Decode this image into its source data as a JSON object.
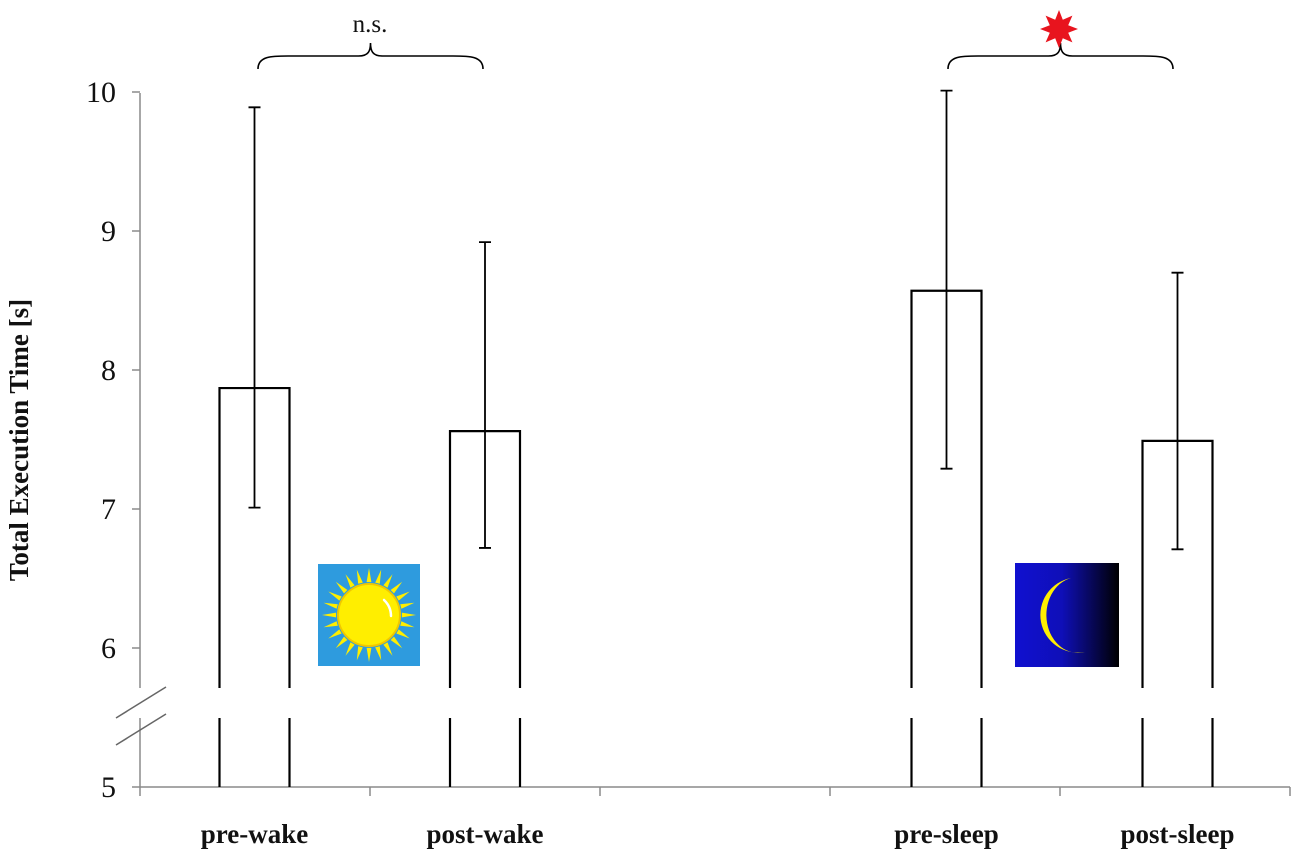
{
  "chart_data": {
    "type": "bar",
    "ylabel": "Total Execution Time [s]",
    "xlabel": "",
    "ylim": [
      5,
      10
    ],
    "yticks": [
      "5",
      "6",
      "7",
      "8",
      "9",
      "10"
    ],
    "axis_break": true,
    "grid": false,
    "legend": "none",
    "categories": [
      "pre-wake",
      "post-wake",
      "pre-sleep",
      "post-sleep"
    ],
    "values": [
      7.87,
      7.56,
      8.57,
      7.49
    ],
    "error_low": [
      7.01,
      6.72,
      7.29,
      6.71
    ],
    "error_high": [
      9.89,
      8.92,
      10.01,
      8.7
    ],
    "comparisons": [
      {
        "groups": [
          "pre-wake",
          "post-wake"
        ],
        "label": "n.s."
      },
      {
        "groups": [
          "pre-sleep",
          "post-sleep"
        ],
        "label": "",
        "marker": "red-star"
      }
    ],
    "icons": [
      {
        "name": "sun-icon",
        "condition": "wake"
      },
      {
        "name": "moon-icon",
        "condition": "sleep"
      }
    ],
    "colors": {
      "bar_fill": "#ffffff",
      "bar_stroke": "#000000",
      "star": "#e8141e",
      "sun_bg": "#2e9bde",
      "sun": "#ffee00",
      "night_bg": "#1313c4",
      "moon": "#ffee00"
    }
  }
}
